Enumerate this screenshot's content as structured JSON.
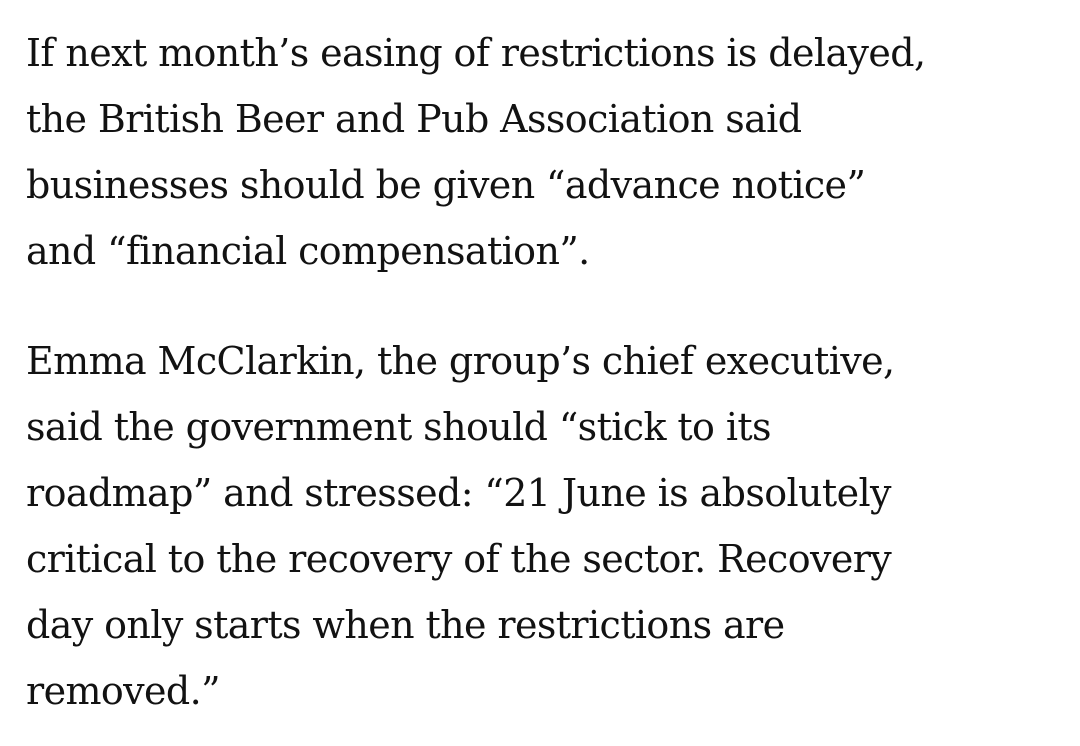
{
  "article": {
    "paragraphs": [
      {
        "lines": [
          "If next month’s easing of restrictions is delayed,",
          "the British Beer and Pub Association said",
          "businesses should be given “advance notice”",
          "and “financial compensation”."
        ]
      },
      {
        "lines": [
          "Emma McClarkin, the group’s chief executive,",
          "said the government should “stick to its",
          "roadmap” and stressed: “21 June is absolutely",
          "critical to the recovery of the sector. Recovery",
          "day only starts when the restrictions are",
          "removed.”"
        ]
      }
    ]
  }
}
